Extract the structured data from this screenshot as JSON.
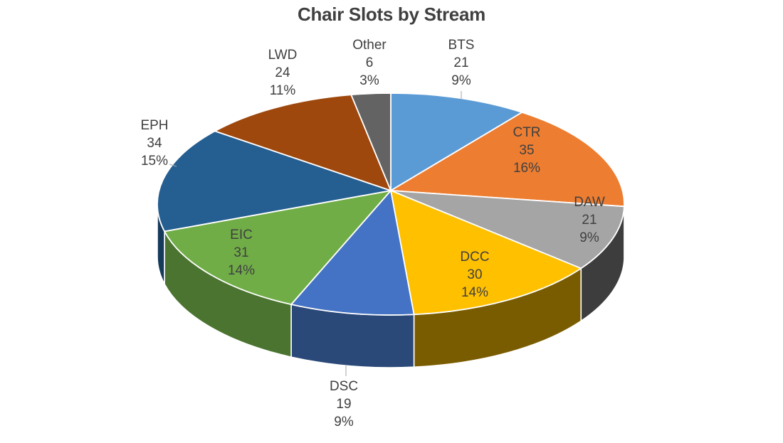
{
  "chart_data": {
    "type": "pie",
    "style": "3d",
    "title": "Chair Slots by Stream",
    "total": 221,
    "direction": "clockwise",
    "start_angle_deg": 0,
    "legend": "none",
    "background": "#FFFFFF",
    "title_color": "#404040",
    "label_color": "#404040",
    "leader_line_color": "#A6A6A6",
    "slice_border_color": "#FFFFFF",
    "slices": [
      {
        "label": "BTS",
        "value": 21,
        "pct": "9%",
        "color": "#5B9BD5",
        "side_color": "#356089",
        "label_placement": "outside"
      },
      {
        "label": "CTR",
        "value": 35,
        "pct": "16%",
        "color": "#ED7D31",
        "side_color": "#8A4719",
        "label_placement": "inside"
      },
      {
        "label": "DAW",
        "value": 21,
        "pct": "9%",
        "color": "#A5A5A5",
        "side_color": "#3D3D3D",
        "label_placement": "inside"
      },
      {
        "label": "DCC",
        "value": 30,
        "pct": "14%",
        "color": "#FFC000",
        "side_color": "#7A5C00",
        "label_placement": "inside"
      },
      {
        "label": "DSC",
        "value": 19,
        "pct": "9%",
        "color": "#4472C4",
        "side_color": "#2A4878",
        "label_placement": "outside"
      },
      {
        "label": "EIC",
        "value": 31,
        "pct": "14%",
        "color": "#70AD47",
        "side_color": "#4A7430",
        "label_placement": "inside"
      },
      {
        "label": "EPH",
        "value": 34,
        "pct": "15%",
        "color": "#255E91",
        "side_color": "#163A59",
        "label_placement": "outside"
      },
      {
        "label": "LWD",
        "value": 24,
        "pct": "11%",
        "color": "#9E480E",
        "side_color": "#5E2B08",
        "label_placement": "outside"
      },
      {
        "label": "Other",
        "value": 6,
        "pct": "3%",
        "color": "#636363",
        "side_color": "#2F2F2F",
        "label_placement": "outside"
      }
    ]
  }
}
